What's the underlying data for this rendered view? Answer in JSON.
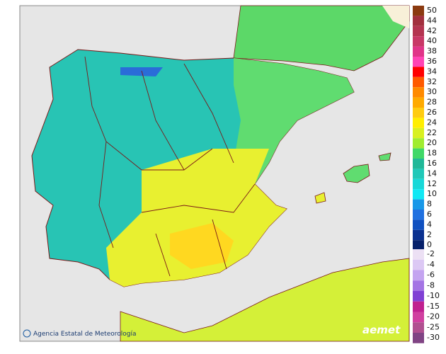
{
  "credit": "Agencia Estatal de Meteorología",
  "logo": "aemet",
  "legend": {
    "groups": [
      {
        "items": [
          {
            "label": "50",
            "color": "#8b3a10"
          },
          {
            "label": "44",
            "color": "#a2303e"
          },
          {
            "label": "42",
            "color": "#b43450"
          },
          {
            "label": "40",
            "color": "#c83866"
          },
          {
            "label": "38",
            "color": "#e03488"
          },
          {
            "label": "36",
            "color": "#ff44b4"
          },
          {
            "label": "34",
            "color": "#ff0000"
          },
          {
            "label": "32",
            "color": "#ff5a00"
          },
          {
            "label": "30",
            "color": "#ff8a00"
          },
          {
            "label": "28",
            "color": "#ffaa00"
          },
          {
            "label": "26",
            "color": "#ffcc10"
          },
          {
            "label": "24",
            "color": "#ffee00"
          },
          {
            "label": "22",
            "color": "#d8f020"
          },
          {
            "label": "20",
            "color": "#a0ec30"
          },
          {
            "label": "18",
            "color": "#40d868"
          },
          {
            "label": "16",
            "color": "#20b898"
          },
          {
            "label": "14",
            "color": "#20c8b8"
          },
          {
            "label": "12",
            "color": "#18d8d8"
          },
          {
            "label": "10",
            "color": "#10e8f4"
          },
          {
            "label": "8",
            "color": "#1898e8"
          },
          {
            "label": "6",
            "color": "#2070e0"
          },
          {
            "label": "4",
            "color": "#1050c0"
          },
          {
            "label": "2",
            "color": "#0a3090"
          },
          {
            "label": "0",
            "color": "#06206a"
          }
        ]
      },
      {
        "items": [
          {
            "label": "-2",
            "color": "#ece0f4"
          },
          {
            "label": "-4",
            "color": "#dcc8f4"
          },
          {
            "label": "-6",
            "color": "#c4a4f0"
          },
          {
            "label": "-8",
            "color": "#a474e4"
          },
          {
            "label": "-10",
            "color": "#8040d4"
          },
          {
            "label": "-15",
            "color": "#c02090"
          },
          {
            "label": "-20",
            "color": "#d040a0"
          },
          {
            "label": "-25",
            "color": "#b05090"
          },
          {
            "label": "-30",
            "color": "#804484"
          }
        ]
      }
    ]
  }
}
